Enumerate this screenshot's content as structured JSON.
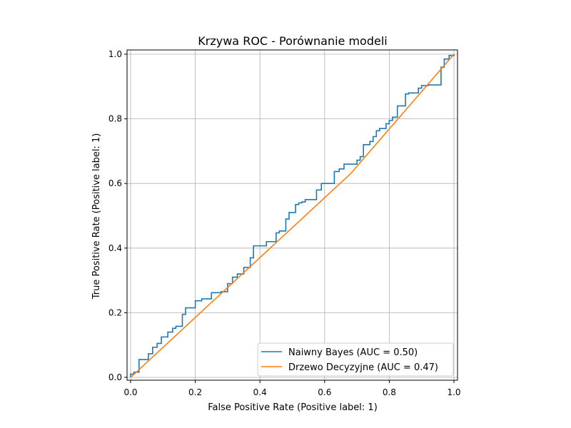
{
  "chart_data": {
    "type": "line",
    "title": "Krzywa ROC - Porównanie modeli",
    "xlabel": "False Positive Rate (Positive label: 1)",
    "ylabel": "True Positive Rate (Positive label: 1)",
    "xlim": [
      0,
      1
    ],
    "ylim": [
      0,
      1
    ],
    "x_ticks": [
      0.0,
      0.2,
      0.4,
      0.6,
      0.8,
      1.0
    ],
    "y_ticks": [
      0.0,
      0.2,
      0.4,
      0.6,
      0.8,
      1.0
    ],
    "x_tick_labels": [
      "0.0",
      "0.2",
      "0.4",
      "0.6",
      "0.8",
      "1.0"
    ],
    "y_tick_labels": [
      "0.0",
      "0.2",
      "0.4",
      "0.6",
      "0.8",
      "1.0"
    ],
    "grid": true,
    "legend_position": "bottom-right",
    "series": [
      {
        "name": "Naiwny Bayes (AUC = 0.50)",
        "color": "#1f77b4",
        "step": true,
        "x": [
          0,
          0,
          0.01,
          0.01,
          0.026,
          0.026,
          0.055,
          0.055,
          0.068,
          0.068,
          0.082,
          0.082,
          0.095,
          0.095,
          0.115,
          0.115,
          0.13,
          0.13,
          0.14,
          0.14,
          0.16,
          0.16,
          0.17,
          0.17,
          0.2,
          0.2,
          0.22,
          0.22,
          0.25,
          0.25,
          0.28,
          0.28,
          0.3,
          0.3,
          0.315,
          0.315,
          0.33,
          0.33,
          0.35,
          0.35,
          0.37,
          0.37,
          0.38,
          0.38,
          0.42,
          0.42,
          0.45,
          0.45,
          0.46,
          0.46,
          0.48,
          0.48,
          0.49,
          0.49,
          0.51,
          0.51,
          0.52,
          0.52,
          0.53,
          0.53,
          0.54,
          0.54,
          0.575,
          0.575,
          0.59,
          0.59,
          0.63,
          0.63,
          0.645,
          0.645,
          0.66,
          0.66,
          0.7,
          0.7,
          0.71,
          0.71,
          0.72,
          0.72,
          0.74,
          0.74,
          0.75,
          0.75,
          0.76,
          0.76,
          0.77,
          0.77,
          0.79,
          0.79,
          0.8,
          0.8,
          0.81,
          0.81,
          0.825,
          0.825,
          0.85,
          0.85,
          0.86,
          0.86,
          0.89,
          0.89,
          0.9,
          0.9,
          0.92,
          0.92,
          0.96,
          0.96,
          0.97,
          0.97,
          0.985,
          0.985,
          1,
          1
        ],
        "y": [
          0,
          0.01,
          0.01,
          0.016,
          0.016,
          0.055,
          0.055,
          0.073,
          0.073,
          0.093,
          0.093,
          0.105,
          0.105,
          0.125,
          0.125,
          0.14,
          0.14,
          0.152,
          0.152,
          0.158,
          0.158,
          0.195,
          0.195,
          0.215,
          0.215,
          0.237,
          0.237,
          0.243,
          0.243,
          0.262,
          0.262,
          0.265,
          0.265,
          0.29,
          0.29,
          0.31,
          0.31,
          0.32,
          0.32,
          0.34,
          0.34,
          0.37,
          0.37,
          0.407,
          0.407,
          0.42,
          0.42,
          0.447,
          0.447,
          0.453,
          0.453,
          0.49,
          0.49,
          0.51,
          0.51,
          0.535,
          0.535,
          0.54,
          0.54,
          0.543,
          0.543,
          0.55,
          0.55,
          0.58,
          0.58,
          0.6,
          0.6,
          0.637,
          0.637,
          0.645,
          0.645,
          0.66,
          0.66,
          0.672,
          0.672,
          0.683,
          0.683,
          0.72,
          0.72,
          0.73,
          0.73,
          0.745,
          0.745,
          0.763,
          0.763,
          0.77,
          0.77,
          0.785,
          0.785,
          0.795,
          0.795,
          0.805,
          0.805,
          0.84,
          0.84,
          0.877,
          0.877,
          0.88,
          0.88,
          0.895,
          0.895,
          0.903,
          0.903,
          0.905,
          0.905,
          0.96,
          0.96,
          0.985,
          0.985,
          0.996,
          0.996,
          1
        ]
      },
      {
        "name": "Drzewo Decyzyjne (AUC = 0.47)",
        "color": "#ff7f0e",
        "step": false,
        "x": [
          0,
          0.68,
          1
        ],
        "y": [
          0,
          0.63,
          1
        ]
      }
    ]
  }
}
